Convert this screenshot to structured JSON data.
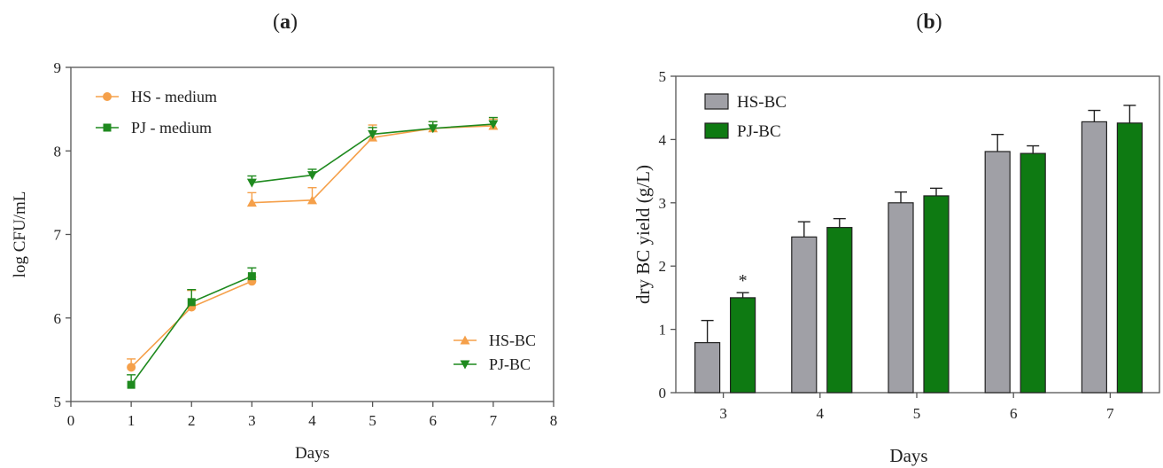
{
  "chart_data": [
    {
      "id": "a",
      "type": "line",
      "panel_label": "a",
      "xlabel": "Days",
      "ylabel": "log CFU/mL",
      "xlim": [
        0,
        8
      ],
      "ylim": [
        5,
        9
      ],
      "xticks": [
        0,
        1,
        2,
        3,
        4,
        5,
        6,
        7,
        8
      ],
      "yticks": [
        5,
        6,
        7,
        8,
        9
      ],
      "grid": false,
      "legends": [
        {
          "placement": "top-left",
          "entries": [
            "HS - medium",
            "PJ - medium"
          ]
        },
        {
          "placement": "bottom-right",
          "entries": [
            "HS-BC",
            "PJ-BC"
          ]
        }
      ],
      "series": [
        {
          "name": "HS - medium",
          "color": "#F5A04A",
          "marker": "circle",
          "x": [
            1,
            2,
            3
          ],
          "y": [
            5.41,
            6.13,
            6.44
          ],
          "err": [
            0.1,
            0.2,
            0.05
          ]
        },
        {
          "name": "PJ - medium",
          "color": "#1F8A1F",
          "marker": "square",
          "x": [
            1,
            2,
            3
          ],
          "y": [
            5.2,
            6.19,
            6.5
          ],
          "err": [
            0.12,
            0.15,
            0.1
          ]
        },
        {
          "name": "HS-BC",
          "color": "#F5A04A",
          "marker": "triangle-up",
          "x": [
            3,
            4,
            5,
            6,
            7
          ],
          "y": [
            7.38,
            7.41,
            8.16,
            8.27,
            8.3
          ],
          "err": [
            0.12,
            0.15,
            0.15,
            0.08,
            0.08
          ]
        },
        {
          "name": "PJ-BC",
          "color": "#1F8A1F",
          "marker": "triangle-down",
          "x": [
            3,
            4,
            5,
            6,
            7
          ],
          "y": [
            7.62,
            7.71,
            8.2,
            8.27,
            8.32
          ],
          "err": [
            0.08,
            0.07,
            0.08,
            0.08,
            0.08
          ]
        }
      ]
    },
    {
      "id": "b",
      "type": "bar",
      "panel_label": "b",
      "xlabel": "Days",
      "ylabel": "dry BC yield (g/L)",
      "ylim": [
        0,
        5
      ],
      "yticks": [
        0,
        1,
        2,
        3,
        4,
        5
      ],
      "categories": [
        "3",
        "4",
        "5",
        "6",
        "7"
      ],
      "grid": false,
      "legend": {
        "placement": "top-left"
      },
      "series": [
        {
          "name": "HS-BC",
          "color": "#A0A0A6",
          "values": [
            0.79,
            2.46,
            3.0,
            3.81,
            4.28
          ],
          "err": [
            0.35,
            0.24,
            0.17,
            0.27,
            0.18
          ]
        },
        {
          "name": "PJ-BC",
          "color": "#0E7A12",
          "values": [
            1.5,
            2.61,
            3.11,
            3.78,
            4.26
          ],
          "err": [
            0.08,
            0.14,
            0.12,
            0.12,
            0.28
          ]
        }
      ],
      "annotations": [
        {
          "text": "*",
          "category": "3",
          "series": "PJ-BC"
        }
      ]
    }
  ]
}
